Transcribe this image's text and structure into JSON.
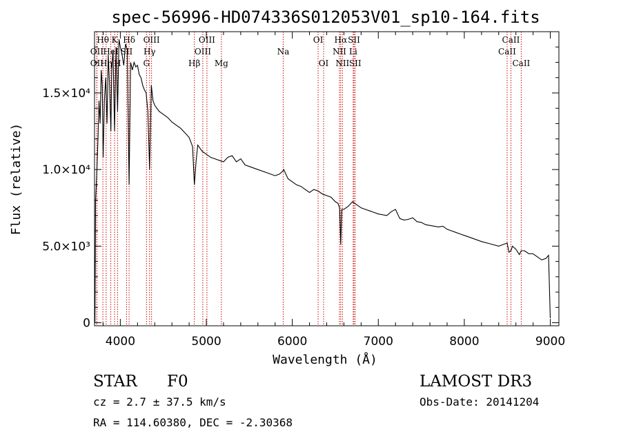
{
  "chart_data": {
    "type": "line",
    "title": "spec-56996-HD074336S012053V01_sp10-164.fits",
    "xlabel": "Wavelength (Å)",
    "ylabel": "Flux (relative)",
    "xlim": [
      3700,
      9100
    ],
    "ylim": [
      -200,
      19000
    ],
    "x_ticks": [
      {
        "value": 4000,
        "label": "4000"
      },
      {
        "value": 5000,
        "label": "5000"
      },
      {
        "value": 6000,
        "label": "6000"
      },
      {
        "value": 7000,
        "label": "7000"
      },
      {
        "value": 8000,
        "label": "8000"
      },
      {
        "value": 9000,
        "label": "9000"
      }
    ],
    "y_ticks": [
      {
        "value": 0,
        "label": "0"
      },
      {
        "value": 5000,
        "label": "5.0×10³"
      },
      {
        "value": 10000,
        "label": "1.0×10⁴"
      },
      {
        "value": 15000,
        "label": "1.5×10⁴"
      }
    ],
    "series": [
      {
        "name": "spectrum",
        "x": [
          3705,
          3712,
          3725,
          3740,
          3752,
          3765,
          3778,
          3790,
          3800,
          3815,
          3830,
          3845,
          3860,
          3875,
          3890,
          3900,
          3915,
          3933,
          3950,
          3968,
          3985,
          4000,
          4020,
          4040,
          4060,
          4080,
          4102,
          4120,
          4140,
          4160,
          4180,
          4200,
          4220,
          4240,
          4260,
          4280,
          4300,
          4320,
          4340,
          4360,
          4380,
          4400,
          4450,
          4500,
          4550,
          4600,
          4650,
          4700,
          4750,
          4800,
          4840,
          4861,
          4880,
          4900,
          4950,
          5000,
          5050,
          5100,
          5150,
          5200,
          5250,
          5300,
          5350,
          5400,
          5450,
          5500,
          5600,
          5700,
          5800,
          5850,
          5890,
          5900,
          5950,
          6000,
          6050,
          6100,
          6150,
          6200,
          6250,
          6300,
          6350,
          6400,
          6450,
          6500,
          6530,
          6550,
          6563,
          6575,
          6600,
          6650,
          6700,
          6750,
          6800,
          6850,
          6900,
          6950,
          7000,
          7100,
          7150,
          7200,
          7250,
          7300,
          7350,
          7400,
          7450,
          7500,
          7550,
          7600,
          7650,
          7700,
          7750,
          7800,
          7850,
          7900,
          7950,
          8000,
          8100,
          8200,
          8300,
          8400,
          8450,
          8498,
          8520,
          8542,
          8560,
          8600,
          8640,
          8662,
          8700,
          8750,
          8800,
          8850,
          8900,
          8950,
          8980,
          9000
        ],
        "values": [
          0,
          8000,
          9500,
          12000,
          14500,
          13000,
          16500,
          15500,
          10800,
          14500,
          16000,
          13000,
          17500,
          15500,
          12500,
          16500,
          17800,
          12500,
          18000,
          13800,
          18500,
          18000,
          17500,
          16800,
          18200,
          17800,
          9000,
          17000,
          16500,
          17000,
          16700,
          16800,
          16200,
          16000,
          15500,
          15200,
          15000,
          13800,
          10000,
          15500,
          14500,
          14200,
          13800,
          13600,
          13400,
          13100,
          12900,
          12700,
          12400,
          12100,
          11500,
          9000,
          10500,
          11600,
          11200,
          11000,
          10800,
          10700,
          10600,
          10500,
          10800,
          10900,
          10500,
          10700,
          10300,
          10200,
          10000,
          9800,
          9600,
          9700,
          9900,
          10000,
          9400,
          9200,
          9000,
          8900,
          8700,
          8500,
          8700,
          8600,
          8400,
          8300,
          8200,
          7900,
          7800,
          7500,
          5100,
          7400,
          7400,
          7600,
          7900,
          7700,
          7500,
          7400,
          7300,
          7200,
          7100,
          7000,
          7250,
          7400,
          6800,
          6700,
          6750,
          6850,
          6600,
          6550,
          6400,
          6350,
          6300,
          6250,
          6300,
          6100,
          6000,
          5900,
          5800,
          5700,
          5500,
          5300,
          5150,
          5000,
          5100,
          5200,
          4600,
          4700,
          5000,
          4800,
          4450,
          4700,
          4700,
          4500,
          4500,
          4300,
          4100,
          4200,
          4400,
          300
        ]
      }
    ],
    "lines": [
      {
        "name": "Hθ",
        "wave": 3797,
        "row": 1,
        "top": true
      },
      {
        "name": "OII",
        "wave": 3727,
        "row": 2,
        "top": true
      },
      {
        "name": "OII",
        "wave": 3727,
        "row": 3,
        "top": true
      },
      {
        "name": "Hη",
        "wave": 3835,
        "row": 3,
        "top": true
      },
      {
        "name": "HeI",
        "wave": 3889,
        "row": 2,
        "top": true
      },
      {
        "name": "K",
        "wave": 3933,
        "row": 1,
        "top": true
      },
      {
        "name": "H",
        "wave": 3968,
        "row": 3,
        "top": true
      },
      {
        "name": "SII",
        "wave": 4072,
        "row": 2,
        "top": true
      },
      {
        "name": "Hδ",
        "wave": 4102,
        "row": 1,
        "top": true
      },
      {
        "name": "OIII",
        "wave": 4363,
        "row": 1,
        "top": true
      },
      {
        "name": "Hγ",
        "wave": 4340,
        "row": 2,
        "top": true
      },
      {
        "name": "G",
        "wave": 4304,
        "row": 3,
        "top": true
      },
      {
        "name": "Hβ",
        "wave": 4861,
        "row": 3,
        "top": true
      },
      {
        "name": "OIII",
        "wave": 5007,
        "row": 1,
        "top": true
      },
      {
        "name": "OIII",
        "wave": 4959,
        "row": 2,
        "top": true
      },
      {
        "name": "Mg",
        "wave": 5175,
        "row": 3,
        "top": true
      },
      {
        "name": "Na",
        "wave": 5894,
        "row": 2,
        "top": true
      },
      {
        "name": "OI",
        "wave": 6300,
        "row": 1,
        "top": true
      },
      {
        "name": "OI",
        "wave": 6364,
        "row": 3,
        "top": true
      },
      {
        "name": "Hα",
        "wave": 6563,
        "row": 1,
        "top": true
      },
      {
        "name": "NII",
        "wave": 6548,
        "row": 2,
        "top": true
      },
      {
        "name": "NII",
        "wave": 6583,
        "row": 3,
        "top": true
      },
      {
        "name": "SII",
        "wave": 6717,
        "row": 1,
        "top": true
      },
      {
        "name": "Li",
        "wave": 6708,
        "row": 2,
        "top": true
      },
      {
        "name": "SII",
        "wave": 6731,
        "row": 3,
        "top": true
      },
      {
        "name": "CaII",
        "wave": 8542,
        "row": 1,
        "top": true
      },
      {
        "name": "CaII",
        "wave": 8498,
        "row": 2,
        "top": true
      },
      {
        "name": "CaII",
        "wave": 8662,
        "row": 3,
        "top": true
      }
    ]
  },
  "info": {
    "class_label": "STAR",
    "subclass": "F0",
    "survey": "LAMOST DR3",
    "cz": "cz = 2.7 ± 37.5 km/s",
    "obs_date": "Obs-Date: 20141204",
    "coords": "RA = 114.60380, DEC =  -2.30368"
  }
}
